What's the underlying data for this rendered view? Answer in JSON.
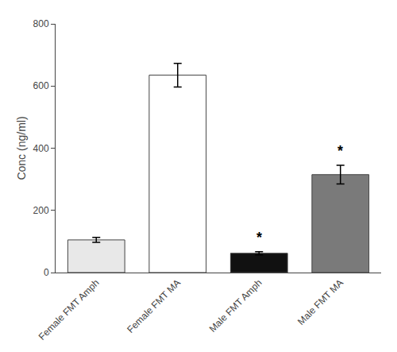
{
  "chart_data": {
    "type": "bar",
    "categories": [
      "Female FMT Amph",
      "Female FMT MA",
      "Male FMT Amph",
      "Male FMT MA"
    ],
    "values": [
      105,
      635,
      62,
      315
    ],
    "errors": [
      8,
      38,
      5,
      30
    ],
    "colors": [
      "#e8e8e8",
      "#ffffff",
      "#111111",
      "#7a7a7a"
    ],
    "ylabel": "Conc (ng/ml)",
    "ylim": [
      0,
      800
    ],
    "yticks": [
      0,
      200,
      400,
      600,
      800
    ],
    "grid": false,
    "annotations": [
      {
        "category": "Male FMT Amph",
        "text": "*"
      },
      {
        "category": "Male FMT MA",
        "text": "*"
      }
    ]
  }
}
